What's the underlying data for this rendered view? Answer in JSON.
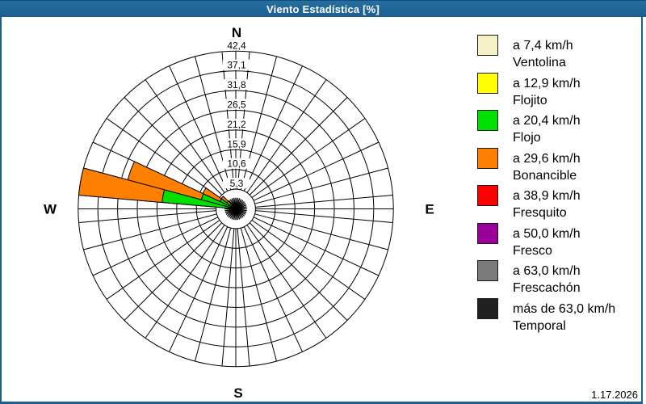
{
  "window": {
    "title": "Viento Estadística [%]",
    "date": "1.17.2026",
    "titlebar_color": "#1f689a",
    "border_color": "#1c6093"
  },
  "legend": {
    "items": [
      {
        "speed": "a 7,4 km/h",
        "name": "Ventolina",
        "color": "#F7F1C8"
      },
      {
        "speed": "a 12,9 km/h",
        "name": "Flojito",
        "color": "#FFFF00"
      },
      {
        "speed": "a 20,4 km/h",
        "name": "Flojo",
        "color": "#00E000"
      },
      {
        "speed": "a 29,6 km/h",
        "name": "Bonancible",
        "color": "#FF8000"
      },
      {
        "speed": "a 38,9 km/h",
        "name": "Fresquito",
        "color": "#FF0000"
      },
      {
        "speed": "a 50,0 km/h",
        "name": "Fresco",
        "color": "#990099"
      },
      {
        "speed": "a 63,0 km/h",
        "name": "Frescachón",
        "color": "#7A7A7A"
      },
      {
        "speed": "más de 63,0 km/h",
        "name": "Temporal",
        "color": "#202020"
      }
    ]
  },
  "chart_data": {
    "type": "windrose-stacked-bar",
    "title": "Viento Estadística [%]",
    "units": "%",
    "rmax": 42.4,
    "ring_values": [
      5.3,
      10.6,
      15.9,
      21.2,
      26.5,
      31.8,
      37.1,
      42.4
    ],
    "ring_labels": [
      "5,3",
      "10,6",
      "15,9",
      "21,2",
      "26,5",
      "31,8",
      "37,1",
      "42,4"
    ],
    "sector_width_deg": 10,
    "grid": "on",
    "compass_labels": {
      "n": "N",
      "e": "E",
      "s": "S",
      "w": "W"
    },
    "bars": [
      {
        "direction_deg": 280,
        "segments": [
          {
            "category": "Flojo",
            "from": 0,
            "to": 19.9
          },
          {
            "category": "Bonancible",
            "from": 19.9,
            "to": 42.4
          }
        ]
      },
      {
        "direction_deg": 290,
        "segments": [
          {
            "category": "Flojo",
            "from": 0,
            "to": 9.6
          },
          {
            "category": "Bonancible",
            "from": 9.6,
            "to": 30.1
          }
        ]
      },
      {
        "direction_deg": 300,
        "segments": [
          {
            "category": "Flojo",
            "from": 0,
            "to": 4.7
          },
          {
            "category": "Bonancible",
            "from": 4.7,
            "to": 9.8
          }
        ]
      },
      {
        "direction_deg": 310,
        "segments": [
          {
            "category": "Flojito",
            "from": 0,
            "to": 2.9
          },
          {
            "category": "Bonancible",
            "from": 2.9,
            "to": 4.8
          }
        ]
      }
    ],
    "other_sectors_trace_pct": 3.0
  }
}
